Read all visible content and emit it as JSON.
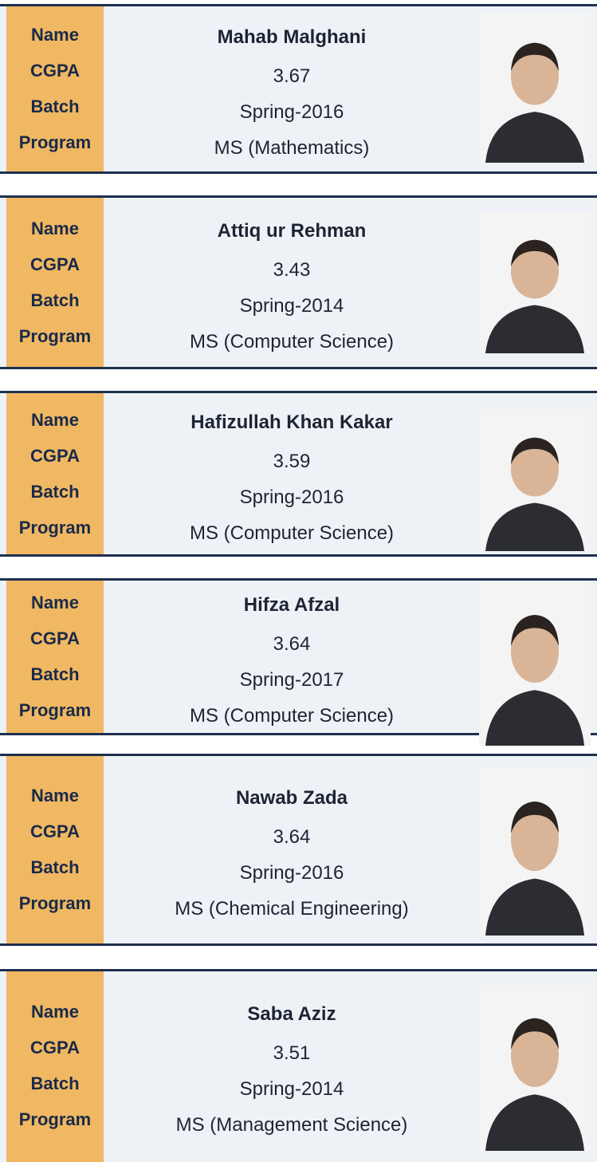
{
  "cards": [
    {
      "labels": [
        "Name",
        "CGPA",
        "Batch",
        "Program"
      ],
      "name": "Mahab Malghani",
      "cgpa": "3.67",
      "batch": "Spring-2016",
      "program": "MS (Mathematics)"
    },
    {
      "labels": [
        "Name",
        "CGPA",
        "Batch",
        "Program"
      ],
      "name": "Attiq ur Rehman",
      "cgpa": "3.43",
      "batch": "Spring-2014",
      "program": "MS (Computer Science)"
    },
    {
      "labels": [
        "Name",
        "CGPA",
        "Batch",
        "Program"
      ],
      "name": "Hafizullah Khan Kakar",
      "cgpa": "3.59",
      "batch": "Spring-2016",
      "program": "MS (Computer Science)"
    },
    {
      "labels": [
        "Name",
        "CGPA",
        "Batch",
        "Program"
      ],
      "name": "Hifza Afzal",
      "cgpa": "3.64",
      "batch": "Spring-2017",
      "program": "MS (Computer Science)"
    },
    {
      "labels": [
        "Name",
        "CGPA",
        "Batch",
        "Program"
      ],
      "name": "Nawab Zada",
      "cgpa": "3.64",
      "batch": "Spring-2016",
      "program": "MS (Chemical Engineering)"
    },
    {
      "labels": [
        "Name",
        "CGPA",
        "Batch",
        "Program"
      ],
      "name": "Saba Aziz",
      "cgpa": "3.51",
      "batch": "Spring-2014",
      "program": "MS (Management Science)"
    }
  ]
}
